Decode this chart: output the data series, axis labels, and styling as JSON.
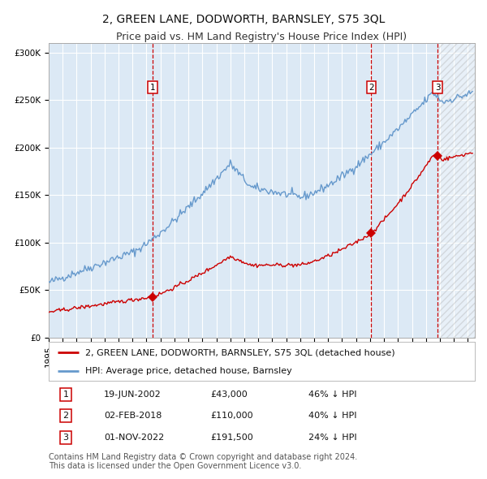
{
  "title": "2, GREEN LANE, DODWORTH, BARNSLEY, S75 3QL",
  "subtitle": "Price paid vs. HM Land Registry's House Price Index (HPI)",
  "ylim": [
    0,
    310000
  ],
  "yticks": [
    0,
    50000,
    100000,
    150000,
    200000,
    250000,
    300000
  ],
  "ytick_labels": [
    "£0",
    "£50K",
    "£100K",
    "£150K",
    "£200K",
    "£250K",
    "£300K"
  ],
  "xstart": 1995.0,
  "xend": 2025.5,
  "plot_bg_color": "#dce9f5",
  "grid_color": "#ffffff",
  "sale_color": "#cc0000",
  "hpi_color": "#6699cc",
  "sale_times": [
    2002.46,
    2018.09,
    2022.83
  ],
  "sale_prices": [
    43000,
    110000,
    191500
  ],
  "sale_labels": [
    "1",
    "2",
    "3"
  ],
  "legend_sale_label": "2, GREEN LANE, DODWORTH, BARNSLEY, S75 3QL (detached house)",
  "legend_hpi_label": "HPI: Average price, detached house, Barnsley",
  "table_data": [
    [
      "1",
      "19-JUN-2002",
      "£43,000",
      "46% ↓ HPI"
    ],
    [
      "2",
      "02-FEB-2018",
      "£110,000",
      "40% ↓ HPI"
    ],
    [
      "3",
      "01-NOV-2022",
      "£191,500",
      "24% ↓ HPI"
    ]
  ],
  "footnote": "Contains HM Land Registry data © Crown copyright and database right 2024.\nThis data is licensed under the Open Government Licence v3.0.",
  "title_fontsize": 10,
  "subtitle_fontsize": 9,
  "tick_fontsize": 7.5,
  "legend_fontsize": 8,
  "table_fontsize": 8,
  "footnote_fontsize": 7
}
